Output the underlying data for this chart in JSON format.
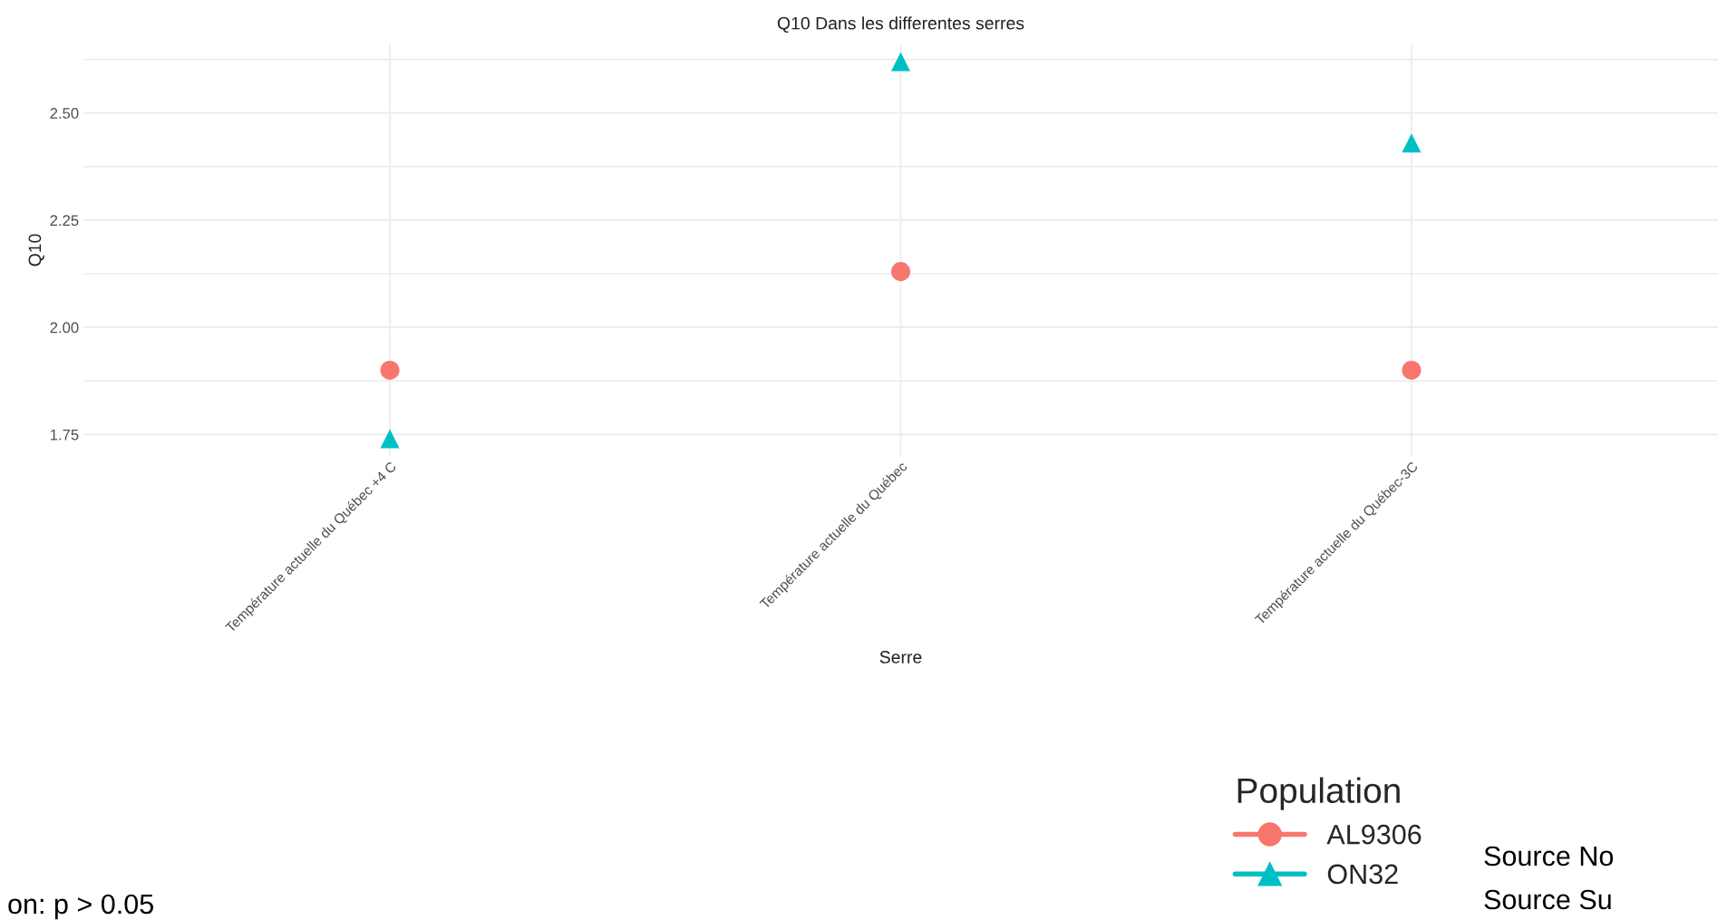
{
  "chart_data": {
    "type": "scatter",
    "title": "Q10 Dans les differentes serres",
    "xlabel": "Serre",
    "ylabel": "Q10",
    "legend_title": "Population",
    "categories": [
      "Température actuelle du Québec +4 C",
      "Température actuelle du Québec",
      "Température actuelle du Québec-3C"
    ],
    "series": [
      {
        "name": "AL9306",
        "color": "#f8766d",
        "marker": "circle",
        "values": [
          1.9,
          2.13,
          1.9
        ]
      },
      {
        "name": "ON32",
        "color": "#00bfc4",
        "marker": "triangle",
        "values": [
          1.74,
          2.62,
          2.43
        ]
      }
    ],
    "ylim": [
      1.7,
      2.66
    ],
    "yticks": [
      1.75,
      {
        "value": 1.875,
        "label": null
      },
      {
        "value": 2.0,
        "label": "2.00"
      },
      {
        "value": 2.125,
        "label": null
      },
      2.25,
      {
        "value": 2.375,
        "label": null
      },
      {
        "value": 2.5,
        "label": "2.50"
      },
      {
        "value": 2.625,
        "label": null
      }
    ],
    "grid": true,
    "legend": "bottom right",
    "annotations": [
      "Source No",
      "Source Su",
      "on: p > 0.05"
    ]
  }
}
